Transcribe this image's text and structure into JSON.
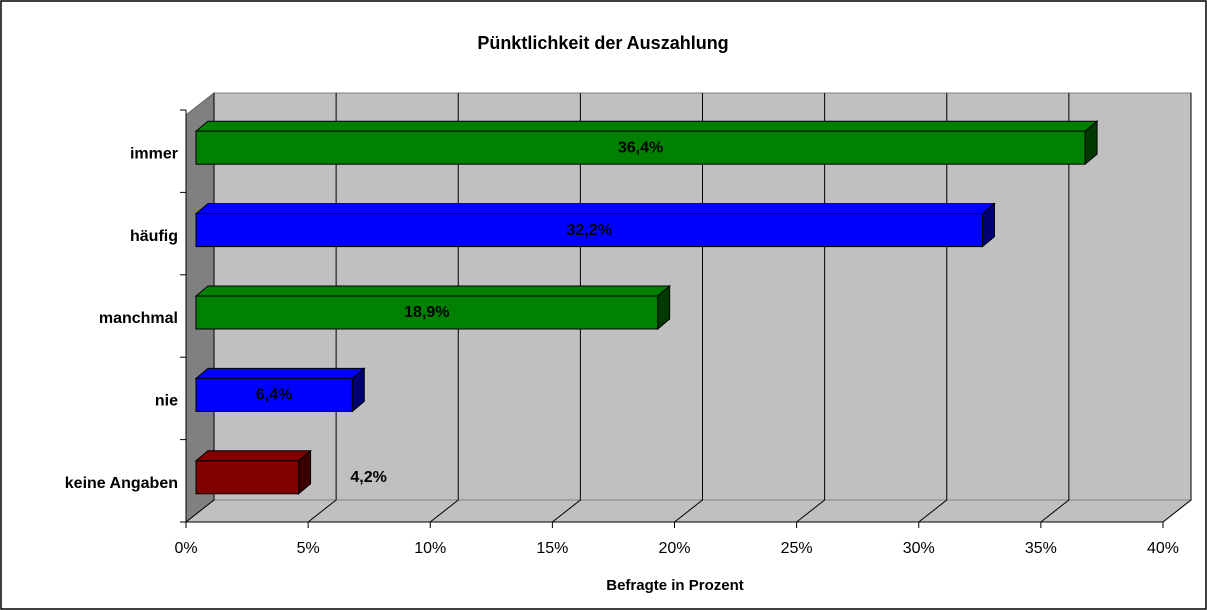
{
  "chart_data": {
    "type": "bar",
    "orientation": "horizontal",
    "title": "Pünktlichkeit der Auszahlung",
    "x_label": "Befragte in Prozent",
    "categories": [
      "immer",
      "häufig",
      "manchmal",
      "nie",
      "keine Angaben"
    ],
    "values": [
      36.4,
      32.2,
      18.9,
      6.4,
      4.2
    ],
    "value_labels": [
      "36,4%",
      "32,2%",
      "18,9%",
      "6,4%",
      "4,2%"
    ],
    "colors": [
      "#008000",
      "#0000ff",
      "#008000",
      "#0000ff",
      "#800000"
    ],
    "xlim": [
      0,
      40
    ],
    "xticks": [
      {
        "value": 0,
        "label": "0%"
      },
      {
        "value": 5,
        "label": "5%"
      },
      {
        "value": 10,
        "label": "10%"
      },
      {
        "value": 15,
        "label": "15%"
      },
      {
        "value": 20,
        "label": "20%"
      },
      {
        "value": 25,
        "label": "25%"
      },
      {
        "value": 30,
        "label": "30%"
      },
      {
        "value": 35,
        "label": "35%"
      },
      {
        "value": 40,
        "label": "40%"
      }
    ],
    "grid": true
  }
}
